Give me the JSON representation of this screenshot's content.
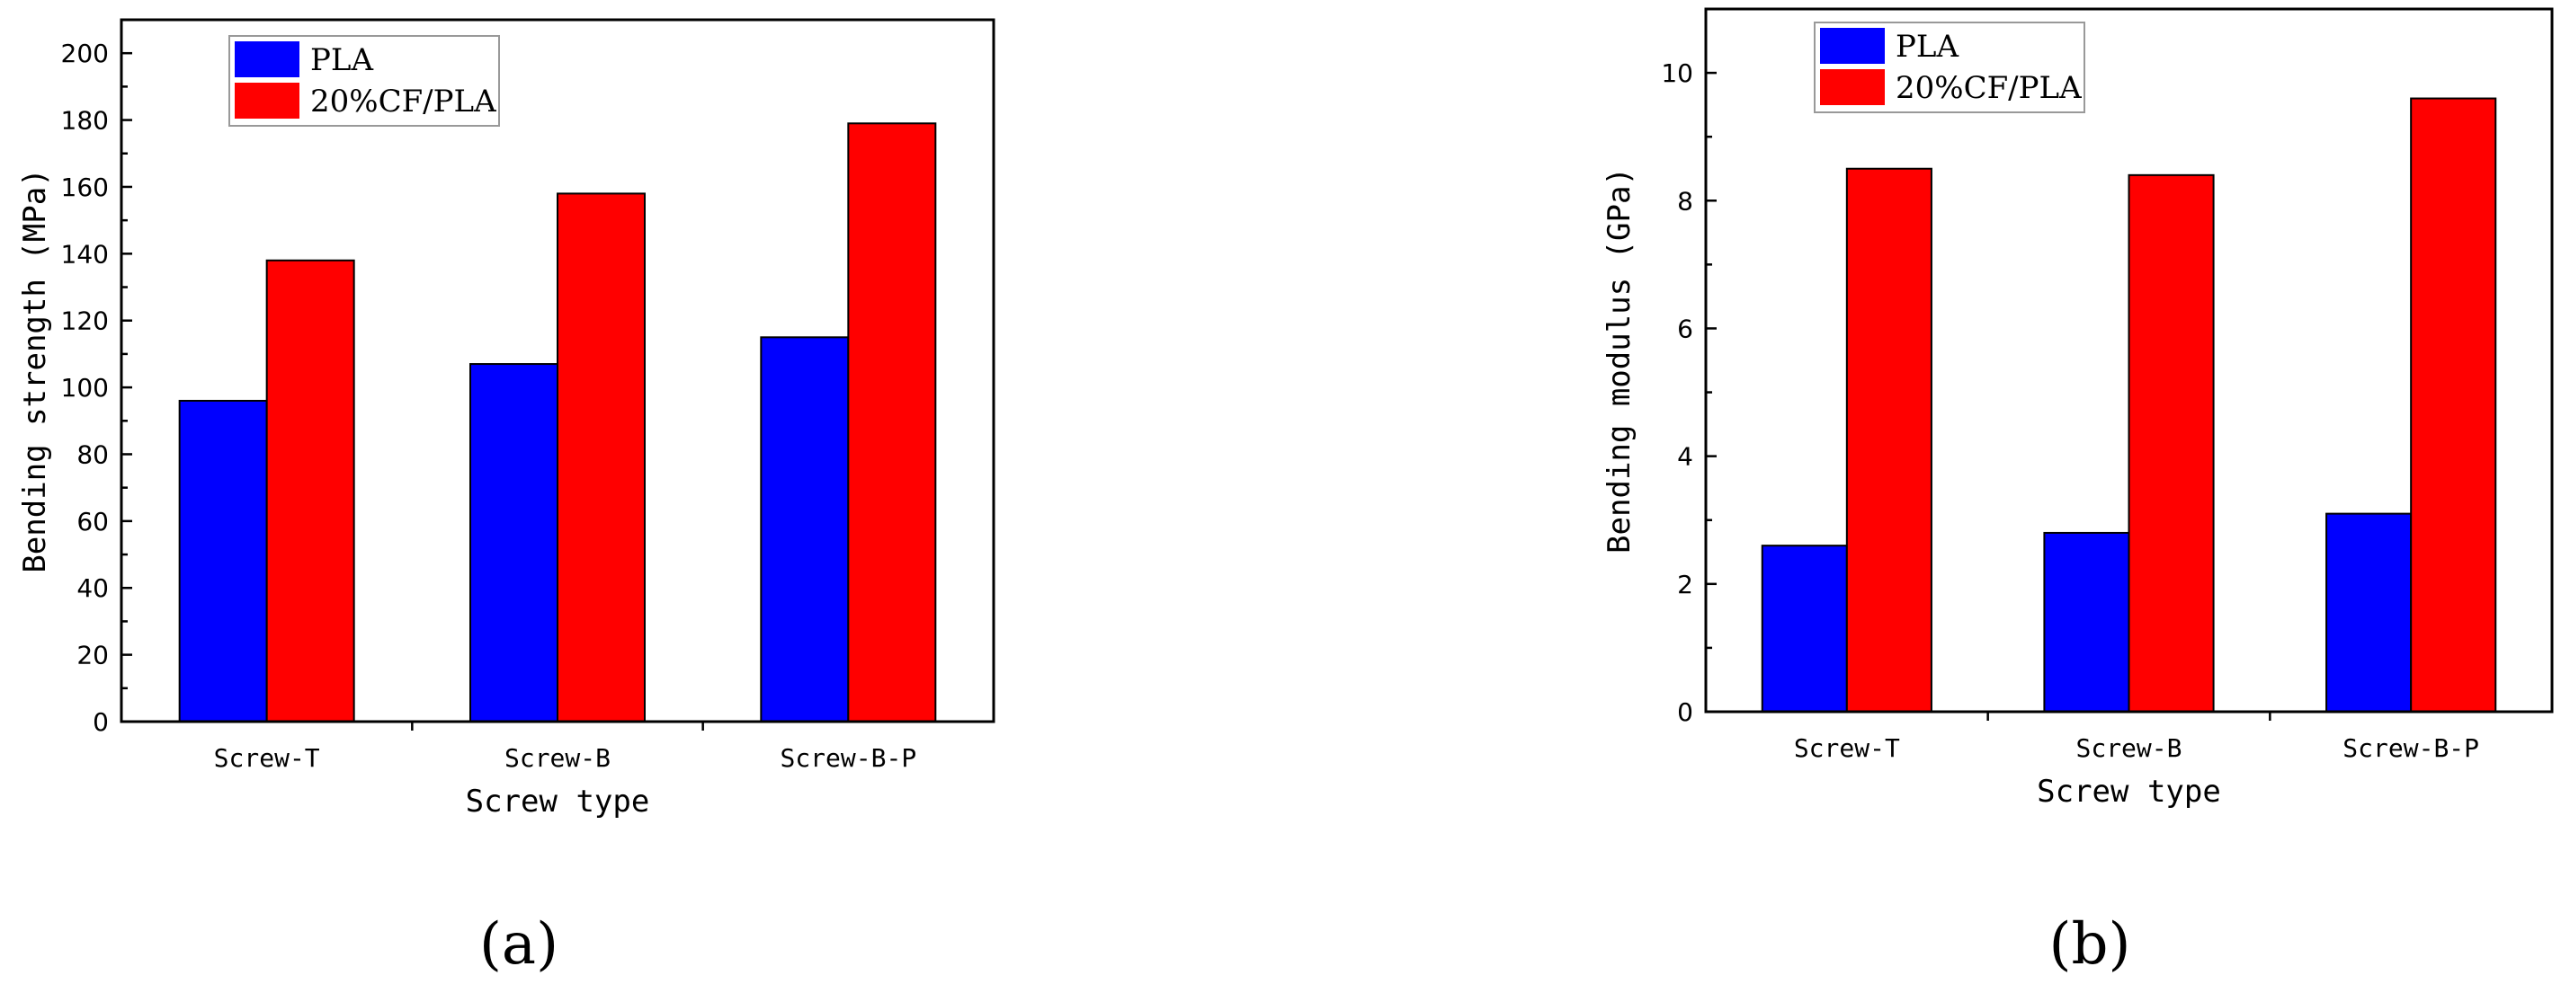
{
  "figure": {
    "panel_labels": [
      "(a)",
      "(b)"
    ]
  },
  "colors": {
    "PLA": "#0000ff",
    "20%CF/PLA": "#ff0000"
  },
  "chart_data": [
    {
      "type": "bar",
      "categories": [
        "Screw-T",
        "Screw-B",
        "Screw-B-P"
      ],
      "series": [
        {
          "name": "PLA",
          "values": [
            96,
            107,
            115
          ]
        },
        {
          "name": "20%CF/PLA",
          "values": [
            138,
            158,
            179
          ]
        }
      ],
      "xlabel": "Screw type",
      "ylabel": "Bending strength (MPa)",
      "ylim": [
        0,
        210
      ],
      "yticks": [
        0,
        20,
        40,
        60,
        80,
        100,
        120,
        140,
        160,
        180,
        200
      ],
      "grid": false,
      "legend": "top-left"
    },
    {
      "type": "bar",
      "categories": [
        "Screw-T",
        "Screw-B",
        "Screw-B-P"
      ],
      "series": [
        {
          "name": "PLA",
          "values": [
            2.6,
            2.8,
            3.1
          ]
        },
        {
          "name": "20%CF/PLA",
          "values": [
            8.5,
            8.4,
            9.6
          ]
        }
      ],
      "xlabel": "Screw type",
      "ylabel": "Bending modulus (GPa)",
      "ylim": [
        0,
        11
      ],
      "yticks": [
        0,
        2,
        4,
        6,
        8,
        10
      ],
      "grid": false,
      "legend": "top-left"
    }
  ]
}
